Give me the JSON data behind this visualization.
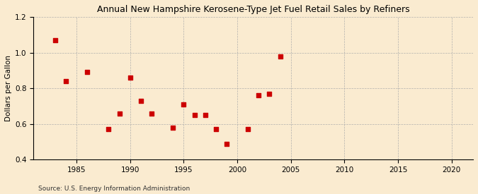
{
  "title": "Annual New Hampshire Kerosene-Type Jet Fuel Retail Sales by Refiners",
  "ylabel": "Dollars per Gallon",
  "source": "Source: U.S. Energy Information Administration",
  "background_color": "#faebd0",
  "plot_bg_color": "#faebd0",
  "marker_color": "#cc0000",
  "marker_size": 4,
  "xlim": [
    1981,
    2022
  ],
  "ylim": [
    0.4,
    1.2
  ],
  "xticks": [
    1985,
    1990,
    1995,
    2000,
    2005,
    2010,
    2015,
    2020
  ],
  "yticks": [
    0.4,
    0.6,
    0.8,
    1.0,
    1.2
  ],
  "data": {
    "years": [
      1983,
      1984,
      1986,
      1988,
      1989,
      1990,
      1991,
      1992,
      1994,
      1995,
      1996,
      1997,
      1998,
      1999,
      2001,
      2002,
      2003,
      2004
    ],
    "values": [
      1.07,
      0.84,
      0.89,
      0.57,
      0.66,
      0.86,
      0.73,
      0.66,
      0.58,
      0.71,
      0.65,
      0.65,
      0.57,
      0.49,
      0.57,
      0.76,
      0.77,
      0.98
    ]
  }
}
